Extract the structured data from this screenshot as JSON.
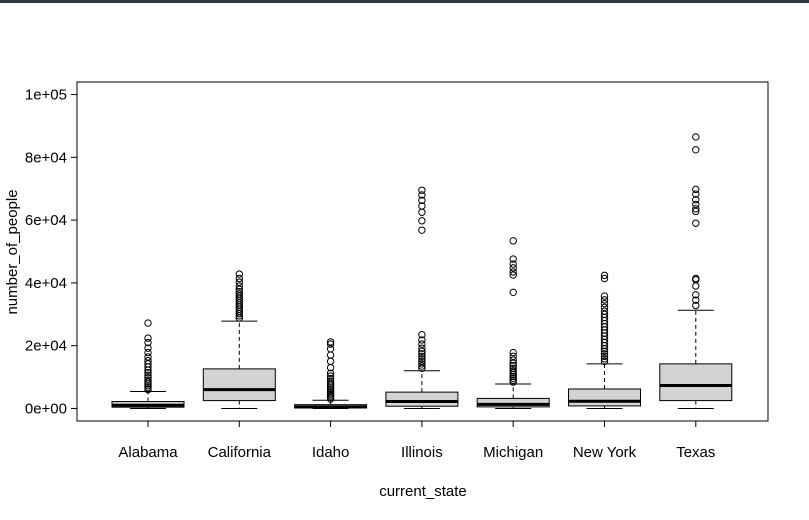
{
  "chart_data": {
    "type": "boxplot",
    "title": "",
    "xlabel": "current_state",
    "ylabel": "number_of_people",
    "ylim": [
      -4000,
      104000
    ],
    "yticks": [
      0,
      20000,
      40000,
      60000,
      80000,
      100000
    ],
    "ytick_labels": [
      "0e+00",
      "2e+04",
      "4e+04",
      "6e+04",
      "8e+04",
      "1e+05"
    ],
    "grid": false,
    "categories": [
      "Alabama",
      "California",
      "Idaho",
      "Illinois",
      "Michigan",
      "New York",
      "Texas"
    ],
    "boxes": [
      {
        "category": "Alabama",
        "min": 0,
        "q1": 400,
        "median": 1000,
        "q3": 2200,
        "max": 5400,
        "outliers": [
          6000,
          6600,
          7200,
          7800,
          8400,
          9000,
          9800,
          10600,
          11400,
          12200,
          13200,
          14200,
          15200,
          16400,
          17800,
          19200,
          21000,
          22400,
          27200
        ]
      },
      {
        "category": "California",
        "min": 0,
        "q1": 2500,
        "median": 6000,
        "q3": 12600,
        "max": 27800,
        "outliers": [
          28800,
          29500,
          30200,
          30900,
          31600,
          32300,
          33000,
          33700,
          34400,
          35100,
          35800,
          36500,
          37200,
          38000,
          39000,
          40200,
          41400,
          42800
        ]
      },
      {
        "category": "Idaho",
        "min": 0,
        "q1": 150,
        "median": 500,
        "q3": 1200,
        "max": 2600,
        "outliers": [
          3000,
          3500,
          4000,
          4500,
          5000,
          5600,
          6200,
          6800,
          7400,
          8000,
          8700,
          9500,
          10300,
          11200,
          13000,
          15000,
          17000,
          19000,
          20500,
          21200
        ]
      },
      {
        "category": "Illinois",
        "min": 0,
        "q1": 700,
        "median": 2200,
        "q3": 5200,
        "max": 12000,
        "outliers": [
          12800,
          13500,
          14200,
          15000,
          15800,
          16600,
          17400,
          18200,
          19200,
          20500,
          21800,
          23500,
          56800,
          59800,
          62500,
          64500,
          66300,
          68000,
          69500
        ]
      },
      {
        "category": "Michigan",
        "min": 0,
        "q1": 500,
        "median": 1300,
        "q3": 3200,
        "max": 7800,
        "outliers": [
          8400,
          9000,
          9600,
          10200,
          10800,
          11400,
          12000,
          12800,
          13600,
          14400,
          15400,
          16600,
          17800,
          37000,
          42500,
          43500,
          44800,
          46000,
          47600,
          53400
        ]
      },
      {
        "category": "New York",
        "min": 0,
        "q1": 800,
        "median": 2300,
        "q3": 6200,
        "max": 14200,
        "outliers": [
          15000,
          15800,
          16600,
          17400,
          18200,
          19000,
          20000,
          21000,
          22000,
          23000,
          24000,
          25000,
          26000,
          27000,
          28000,
          29000,
          30000,
          31000,
          32200,
          33400,
          34600,
          35800,
          41400,
          42400
        ]
      },
      {
        "category": "Texas",
        "min": 0,
        "q1": 2500,
        "median": 7300,
        "q3": 14200,
        "max": 31300,
        "outliers": [
          32800,
          34500,
          36200,
          39000,
          41000,
          41400,
          59000,
          62800,
          63600,
          65000,
          66500,
          68300,
          69800,
          82400,
          86500
        ]
      }
    ]
  }
}
